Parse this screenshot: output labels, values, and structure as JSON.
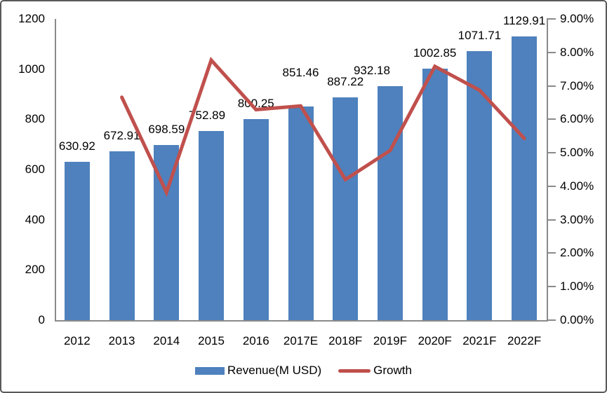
{
  "chart_data": {
    "type": "combo",
    "title": "",
    "categories": [
      "2012",
      "2013",
      "2014",
      "2015",
      "2016",
      "2017E",
      "2018F",
      "2019F",
      "2020F",
      "2021F",
      "2022F"
    ],
    "series": [
      {
        "name": "Revenue(M USD)",
        "chart_type": "bar",
        "y_axis": "left",
        "color": "#4e81bd",
        "values": [
          630.92,
          672.91,
          698.59,
          752.89,
          800.25,
          851.46,
          887.22,
          932.18,
          1002.85,
          1071.71,
          1129.91
        ],
        "data_labels": [
          "630.92",
          "672.91",
          "698.59",
          "752.89",
          "800.25",
          "851.46",
          "887.22",
          "932.18",
          "1002.85",
          "1071.71",
          "1129.91"
        ]
      },
      {
        "name": "Growth",
        "chart_type": "line",
        "y_axis": "right",
        "color": "#c0504d",
        "values": [
          null,
          6.66,
          3.82,
          7.77,
          6.29,
          6.4,
          4.2,
          5.07,
          7.58,
          6.87,
          5.43
        ]
      }
    ],
    "left_axis": {
      "min": 0,
      "max": 1200,
      "step": 200,
      "tick_labels": [
        "0",
        "200",
        "400",
        "600",
        "800",
        "1000",
        "1200"
      ]
    },
    "right_axis": {
      "min": 0,
      "max": 9,
      "step": 1,
      "tick_labels": [
        "0.00%",
        "1.00%",
        "2.00%",
        "3.00%",
        "4.00%",
        "5.00%",
        "6.00%",
        "7.00%",
        "8.00%",
        "9.00%"
      ]
    },
    "legend": {
      "position": "bottom"
    },
    "grid": false,
    "axis_color": "#8a8a8a",
    "text_color": "#000000"
  }
}
